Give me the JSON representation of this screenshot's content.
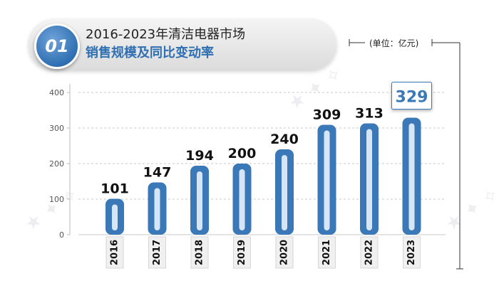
{
  "header": {
    "badge": "01",
    "title_line1": "2016-2023年清洁电器市场",
    "title_line2": "销售规模及同比变动率",
    "unit": "(单位：亿元)"
  },
  "colors": {
    "bar": "#3a78b8",
    "bar_inner": "#d6e6f7",
    "highlight_border": "#3a78b8"
  },
  "chart_data": {
    "type": "bar",
    "categories": [
      "2016",
      "2017",
      "2018",
      "2019",
      "2020",
      "2021",
      "2022",
      "2023"
    ],
    "values": [
      101,
      147,
      194,
      200,
      240,
      309,
      313,
      329
    ],
    "data_labels": [
      "101",
      "147",
      "194",
      "200",
      "240",
      "309",
      "313",
      "329"
    ],
    "y_ticks": [
      "0",
      "100",
      "200",
      "300",
      "400"
    ],
    "ylim": [
      0,
      400
    ],
    "highlight": "2023",
    "grid": true
  }
}
